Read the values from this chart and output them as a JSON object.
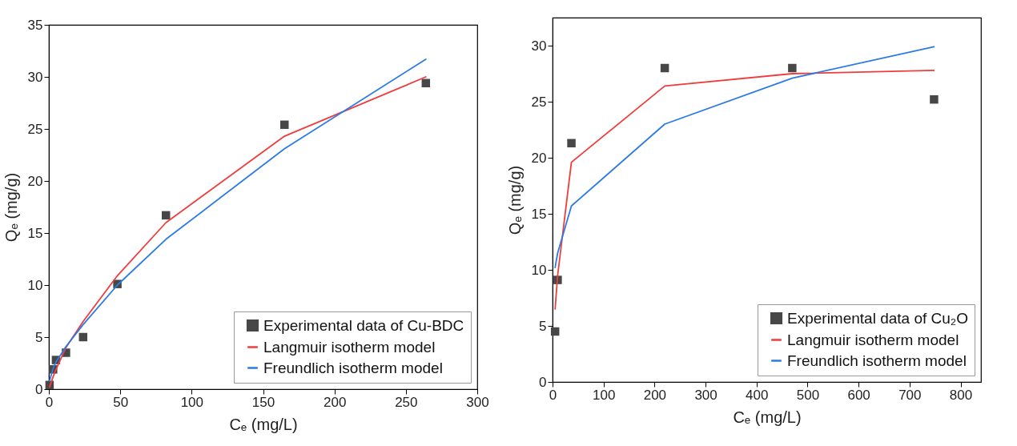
{
  "chart_data": [
    {
      "type": "scatter",
      "xlabel": "Cₑ (mg/L)",
      "ylabel": "Qₑ (mg/g)",
      "xlim": [
        0,
        300
      ],
      "ylim": [
        0,
        35
      ],
      "xticks": [
        0,
        50,
        100,
        150,
        200,
        250,
        300
      ],
      "yticks": [
        0,
        5,
        10,
        15,
        20,
        25,
        30,
        35
      ],
      "grid": false,
      "legend": "bottom right",
      "x": [
        0.5,
        3,
        5,
        12,
        24,
        48,
        82,
        165,
        264
      ],
      "series": [
        {
          "name": "Experimental data of Cu-BDC",
          "marker": "square",
          "color": "#474747",
          "values": [
            0.4,
            1.9,
            2.8,
            3.5,
            5.0,
            10.1,
            16.7,
            25.4,
            29.4
          ]
        },
        {
          "name": "Langmuir isotherm model",
          "type": "line",
          "color": "#f03c3c",
          "values": [
            0.2,
            1.2,
            1.9,
            4.0,
            6.5,
            10.9,
            16.0,
            24.3,
            30.0
          ]
        },
        {
          "name": "Freundlich isotherm model",
          "type": "line",
          "color": "#2b7ae6",
          "values": [
            0.8,
            2.0,
            2.6,
            4.1,
            6.2,
            10.0,
            14.4,
            23.1,
            31.7
          ]
        }
      ]
    },
    {
      "type": "scatter",
      "xlabel": "Cₑ (mg/L)",
      "ylabel": "Qₑ (mg/g)",
      "xlim": [
        0,
        840
      ],
      "ylim": [
        0,
        32.5
      ],
      "xticks": [
        0,
        100,
        200,
        300,
        400,
        500,
        600,
        700,
        800
      ],
      "yticks": [
        0,
        5,
        10,
        15,
        20,
        25,
        30
      ],
      "grid": false,
      "legend": "bottom right",
      "x": [
        5,
        10,
        37,
        220,
        470,
        748
      ],
      "series": [
        {
          "name": "Experimental data of Cu₂O",
          "marker": "square",
          "color": "#474747",
          "values": [
            4.5,
            9.1,
            21.3,
            28.0,
            28.0,
            25.2
          ]
        },
        {
          "name": "Langmuir isotherm model",
          "type": "line",
          "color": "#f03c3c",
          "values": [
            6.5,
            9.5,
            19.6,
            26.4,
            27.5,
            27.8
          ]
        },
        {
          "name": "Freundlich isotherm model",
          "type": "line",
          "color": "#2b7ae6",
          "values": [
            10.2,
            11.5,
            15.7,
            23.0,
            27.1,
            29.9
          ]
        }
      ]
    }
  ]
}
